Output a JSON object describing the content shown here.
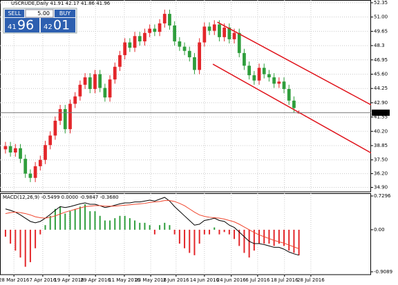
{
  "chart_data": {
    "type": "candlestick",
    "title": "USCRUDE,Daily  41.91 42.17 41.86 41.96",
    "up_color": "#e3262a",
    "down_color": "#2f9e3c",
    "xlim": [
      -1.1,
      73.5
    ],
    "xticks": [
      {
        "value": 1.7,
        "label": "28 Mar 2016"
      },
      {
        "value": 7.5,
        "label": "7 Apr 2016"
      },
      {
        "value": 12.8,
        "label": "19 Apr 2016"
      },
      {
        "value": 18.1,
        "label": "29 Apr 2016"
      },
      {
        "value": 23.9,
        "label": "11 May 2016"
      },
      {
        "value": 29.2,
        "label": "23 May 2016"
      },
      {
        "value": 34.3,
        "label": "2 Jun 2016"
      },
      {
        "value": 40,
        "label": "14 Jun 2016"
      },
      {
        "value": 45.4,
        "label": "24 Jun 2016"
      },
      {
        "value": 50.7,
        "label": "6 Jul 2016"
      },
      {
        "value": 56.1,
        "label": "18 Jul 2016"
      },
      {
        "value": 61.4,
        "label": "28 Jul 2016"
      }
    ],
    "ylim": [
      34.48,
      52.61
    ],
    "yticks": [
      52.35,
      {
        "value": 51,
        "label": "51.00"
      },
      49.65,
      48.3,
      46.95,
      {
        "value": 45.6,
        "label": "45.60"
      },
      44.25,
      {
        "value": 42.9,
        "label": "42.90"
      },
      41.55,
      {
        "value": 40.2,
        "label": "40.20"
      },
      38.85,
      {
        "value": 37.5,
        "label": "37.50"
      },
      {
        "value": 36.2,
        "label": "36.20"
      },
      {
        "value": 34.9,
        "label": "34.90"
      }
    ],
    "grid": true,
    "last_price": 41.96,
    "open": [
      38.5,
      38.8,
      38.2,
      38.6,
      37.6,
      36.2,
      35.8,
      36.9,
      37.5,
      38.9,
      39.8,
      41.2,
      42.3,
      40.4,
      42.8,
      43.5,
      44.6,
      45.3,
      44.2,
      45.6,
      44.3,
      43.4,
      45.1,
      46.3,
      47.4,
      48.6,
      48.1,
      49.2,
      48.7,
      49.5,
      49.9,
      49.6,
      50.4,
      51.3,
      50.2,
      48.7,
      48.2,
      47.8,
      47.2,
      46.0,
      48.6,
      50.1,
      49.7,
      50.3,
      49.1,
      50.0,
      48.9,
      49.5,
      47.6,
      46.4,
      45.5,
      45.0,
      46.2,
      45.6,
      45.3,
      44.7,
      44.9,
      44.2,
      43.1,
      41.91
    ],
    "high": [
      39.2,
      39.2,
      39.0,
      39.0,
      38.0,
      36.6,
      37.3,
      37.9,
      39.3,
      40.2,
      41.6,
      42.7,
      42.7,
      43.2,
      43.9,
      45.0,
      45.7,
      45.7,
      46.0,
      46.0,
      44.7,
      45.5,
      46.7,
      47.8,
      49.0,
      49.0,
      49.6,
      49.6,
      49.9,
      50.3,
      50.3,
      50.8,
      51.7,
      51.7,
      50.6,
      49.1,
      48.6,
      48.2,
      47.6,
      49.0,
      50.5,
      50.5,
      50.7,
      50.7,
      50.4,
      50.4,
      49.9,
      49.9,
      48.0,
      46.8,
      45.9,
      46.6,
      46.6,
      46.0,
      45.7,
      45.3,
      45.3,
      44.6,
      43.5,
      42.17
    ],
    "low": [
      38.1,
      37.8,
      37.8,
      37.2,
      35.8,
      35.4,
      35.4,
      36.5,
      37.1,
      38.5,
      39.4,
      40.8,
      40.0,
      40.0,
      42.4,
      43.1,
      44.2,
      43.8,
      43.8,
      43.9,
      43.0,
      43.0,
      44.7,
      45.9,
      47.0,
      47.7,
      47.7,
      48.3,
      48.3,
      49.1,
      49.2,
      49.2,
      50.0,
      49.8,
      48.3,
      47.8,
      47.4,
      46.8,
      45.6,
      45.6,
      48.2,
      49.3,
      49.3,
      48.7,
      48.7,
      48.5,
      48.5,
      47.2,
      46.0,
      45.1,
      44.6,
      44.6,
      45.2,
      44.9,
      44.3,
      44.3,
      43.8,
      42.7,
      42.0,
      41.86
    ],
    "close": [
      38.8,
      38.2,
      38.6,
      37.6,
      36.2,
      35.8,
      36.9,
      37.5,
      38.9,
      39.8,
      41.2,
      42.3,
      40.4,
      42.8,
      43.5,
      44.6,
      45.3,
      44.2,
      45.6,
      44.3,
      43.4,
      45.1,
      46.3,
      47.4,
      48.6,
      48.1,
      49.2,
      48.7,
      49.5,
      49.9,
      49.6,
      50.4,
      51.3,
      50.2,
      48.7,
      48.2,
      47.8,
      47.2,
      46.0,
      48.6,
      50.1,
      49.7,
      50.3,
      49.1,
      50.0,
      48.9,
      49.5,
      47.6,
      46.4,
      45.5,
      45.0,
      46.2,
      45.6,
      45.3,
      44.7,
      44.9,
      44.2,
      43.1,
      42.4,
      41.96
    ],
    "trendlines": [
      {
        "color": "#e0141c",
        "x": [
          42.6,
          73.5
        ],
        "y": [
          50.52,
          42.7
        ]
      },
      {
        "color": "#e0141c",
        "x": [
          41.7,
          73.5
        ],
        "y": [
          46.55,
          38.16
        ]
      }
    ],
    "macd": {
      "title": "MACD(12,26,9) -0.5499 0.0000 -0.9847 -0.3680",
      "ylim": [
        -0.97,
        0.789
      ],
      "yticks": [
        0.7296,
        {
          "value": 0,
          "label": "0.00"
        },
        -0.9089
      ],
      "histogram": [
        -0.15,
        -0.3,
        -0.45,
        -0.6,
        -0.8,
        -0.7,
        -0.4,
        -0.1,
        0.1,
        0.3,
        0.45,
        0.5,
        0.35,
        0.4,
        0.45,
        0.5,
        0.55,
        0.4,
        0.4,
        0.3,
        0.2,
        0.2,
        0.25,
        0.3,
        0.3,
        0.25,
        0.2,
        0.15,
        0.15,
        0.1,
        -0.1,
        0.1,
        0.15,
        0.1,
        -0.1,
        -0.3,
        -0.4,
        -0.5,
        -0.55,
        -0.3,
        -0.1,
        -0.1,
        0.05,
        -0.1,
        -0.05,
        -0.1,
        -0.2,
        -0.35,
        -0.5,
        -0.6,
        -0.45,
        -0.3,
        -0.3,
        -0.3,
        -0.35,
        -0.3,
        -0.35,
        -0.45,
        -0.5,
        -0.55
      ],
      "series": [
        {
          "color": "#000000",
          "values": [
            0.45,
            0.42,
            0.38,
            0.32,
            0.25,
            0.18,
            0.15,
            0.18,
            0.25,
            0.33,
            0.42,
            0.5,
            0.48,
            0.5,
            0.53,
            0.56,
            0.58,
            0.55,
            0.55,
            0.52,
            0.48,
            0.5,
            0.53,
            0.56,
            0.58,
            0.58,
            0.6,
            0.6,
            0.62,
            0.64,
            0.62,
            0.66,
            0.7,
            0.62,
            0.5,
            0.4,
            0.3,
            0.2,
            0.1,
            0.12,
            0.2,
            0.22,
            0.25,
            0.2,
            0.18,
            0.1,
            0.05,
            -0.05,
            -0.15,
            -0.25,
            -0.3,
            -0.3,
            -0.32,
            -0.35,
            -0.38,
            -0.38,
            -0.42,
            -0.48,
            -0.52,
            -0.55
          ]
        },
        {
          "color": "#f0442c",
          "values": [
            0.35,
            0.37,
            0.38,
            0.37,
            0.35,
            0.32,
            0.28,
            0.26,
            0.25,
            0.27,
            0.3,
            0.34,
            0.38,
            0.41,
            0.44,
            0.47,
            0.5,
            0.51,
            0.52,
            0.52,
            0.51,
            0.51,
            0.51,
            0.52,
            0.53,
            0.54,
            0.55,
            0.56,
            0.57,
            0.59,
            0.6,
            0.61,
            0.63,
            0.63,
            0.61,
            0.57,
            0.52,
            0.45,
            0.38,
            0.32,
            0.29,
            0.27,
            0.26,
            0.25,
            0.23,
            0.2,
            0.17,
            0.12,
            0.06,
            0,
            -0.06,
            -0.11,
            -0.15,
            -0.19,
            -0.23,
            -0.26,
            -0.29,
            -0.33,
            -0.37,
            -0.41
          ]
        }
      ]
    }
  },
  "trade_panel": {
    "sell": "SELL",
    "lot": "5.00",
    "buy": "BUY",
    "bid_small": "41",
    "bid_big": "96",
    "ask_small": "42",
    "ask_big": "01"
  }
}
